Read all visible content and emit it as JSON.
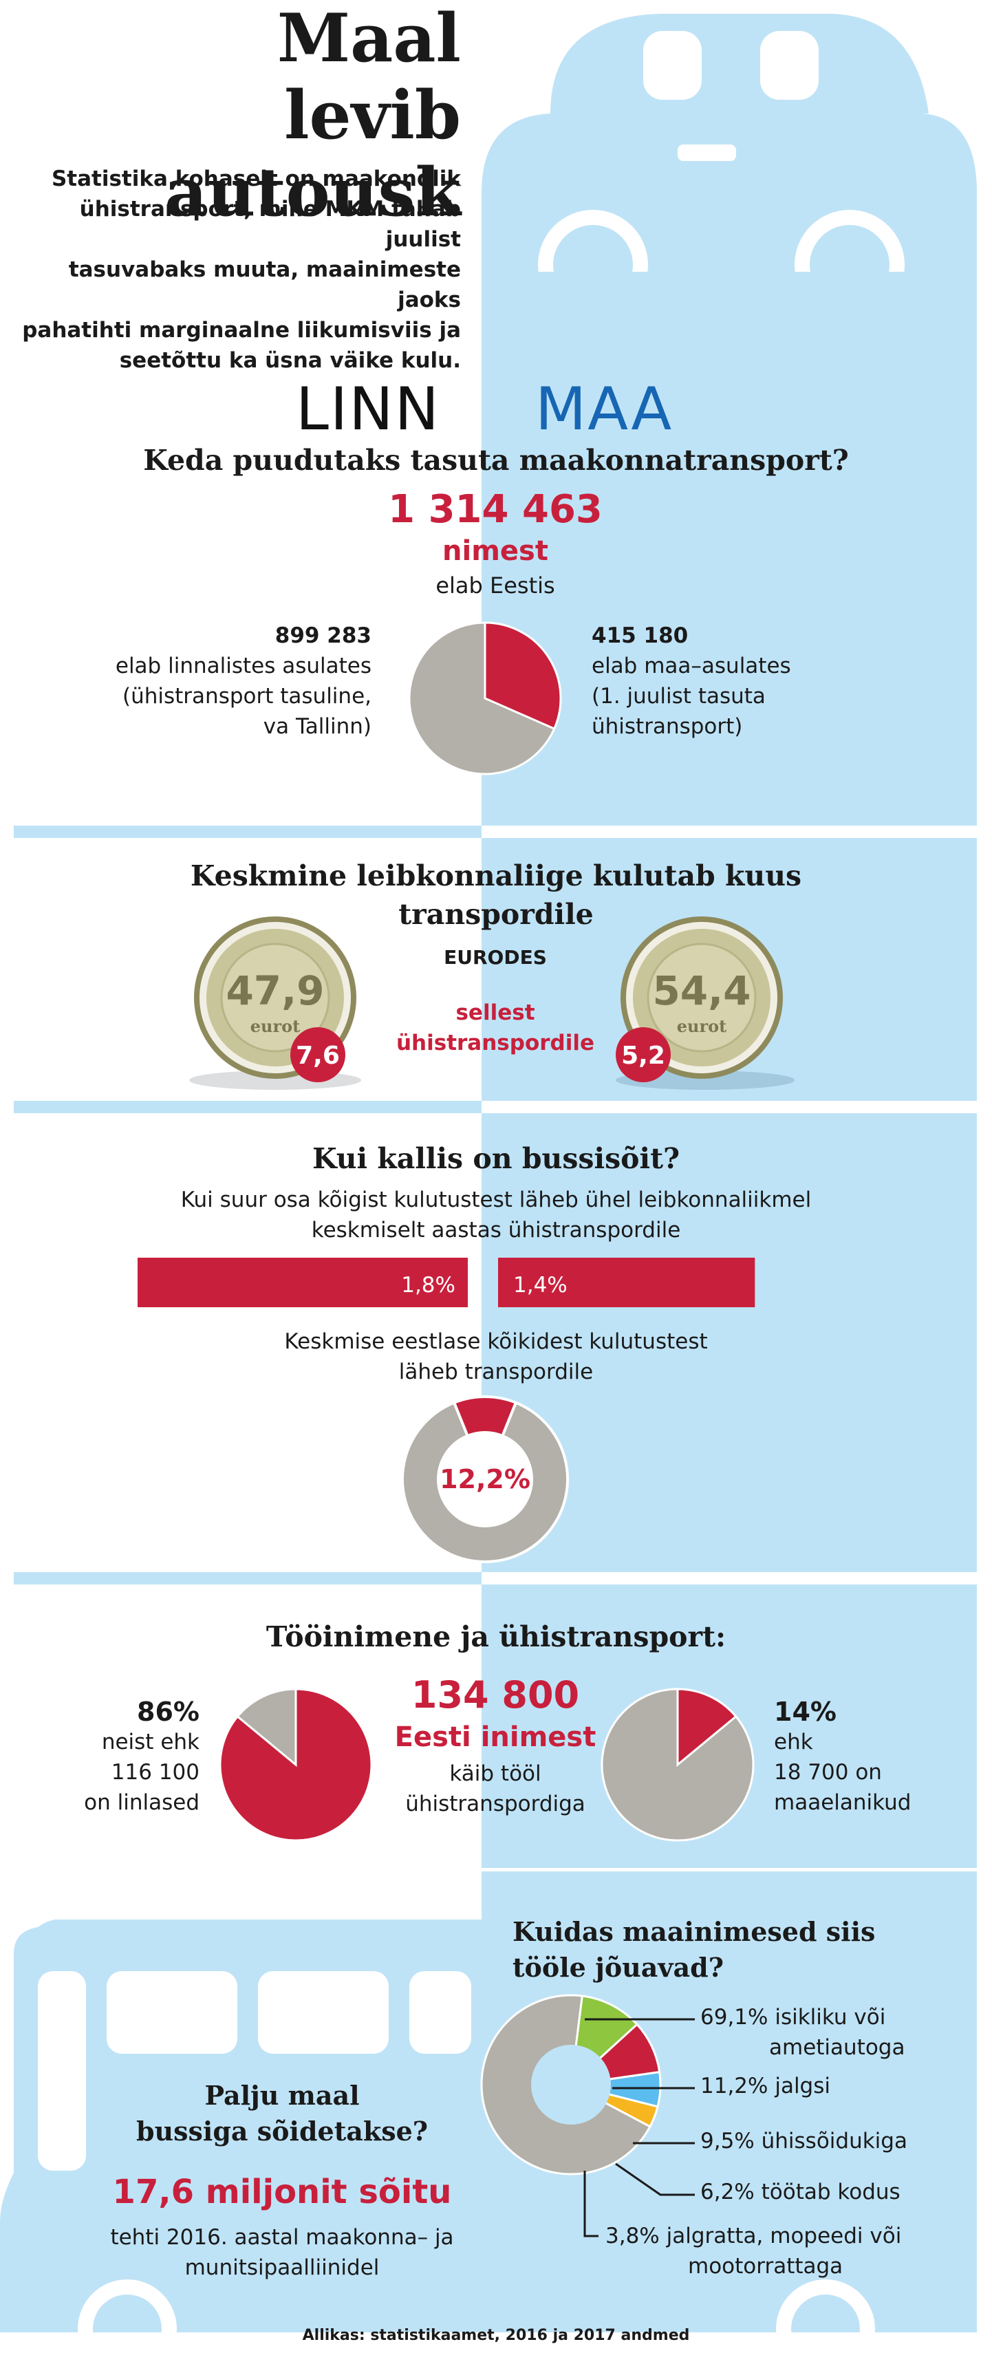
{
  "header": {
    "title_line1": "Maal",
    "title_line2": "levib autousk",
    "intro": [
      "Statistika kohaselt on maakondlik",
      "ühistransport, mille MKM tahab juulist",
      "tasuvabaks muuta, maainimeste jaoks",
      "pahatihti marginaalne liikumisviis ja",
      "seetõttu ka üsna väike kulu."
    ]
  },
  "labels": {
    "city": "LINN",
    "rural": "MAA"
  },
  "section1": {
    "heading": "Keda puudutaks tasuta maakonnatransport?",
    "total_number": "1 314 463",
    "total_unit": "nimest",
    "total_caption": "elab Eestis",
    "left_number": "899 283",
    "left_text": [
      "elab linnalistes asulates",
      "(ühistransport tasuline,",
      "va Tallinn)"
    ],
    "right_number": "415 180",
    "right_text": [
      "elab maa–asulates",
      "(1. juulist tasuta",
      "ühistransport)"
    ],
    "pie": {
      "city": 899283,
      "rural": 415180
    }
  },
  "section2": {
    "heading_line1": "Keskmine leibkonnaliige kulutab kuus",
    "heading_line2": "transpordile",
    "unit": "EURODES",
    "note_line1": "sellest",
    "note_line2": "ühistranspordile",
    "coin_city": {
      "value": "47,9",
      "unit": "eurot",
      "badge": "7,6"
    },
    "coin_rural": {
      "value": "54,4",
      "unit": "eurot",
      "badge": "5,2"
    }
  },
  "section3": {
    "heading": "Kui kallis on bussisõit?",
    "subheading": [
      "Kui suur osa kõigist kulutustest läheb ühel leibkonnaliikmel",
      "keskmiselt aastas ühistranspordile"
    ],
    "bar_city": {
      "label": "1,8%",
      "value": 1.8
    },
    "bar_rural": {
      "label": "1,4%",
      "value": 1.4
    },
    "donut_caption": [
      "Keskmise eestlase kõikidest kulutustest",
      "läheb transpordile"
    ],
    "donut_label": "12,2%",
    "donut_value": 12.2
  },
  "section4": {
    "heading": "Tööinimene ja ühistransport:",
    "center_number": "134 800",
    "center_unit": "Eesti inimest",
    "center_text": [
      "käib tööl",
      "ühistranspordiga"
    ],
    "left_percent": "86%",
    "left_text": [
      "neist ehk",
      "116 100",
      "on linlased"
    ],
    "left_value": 86,
    "right_percent": "14%",
    "right_text": [
      "ehk",
      "18 700 on",
      "maaelanikud"
    ],
    "right_value": 14
  },
  "section5": {
    "heading": [
      "Kuidas maainimesed siis",
      "tööle jõuavad?"
    ],
    "items": [
      {
        "text": [
          "69,1% isikliku või",
          "ametiautoga"
        ],
        "value": 69.1,
        "color": "#b2b0a8"
      },
      {
        "text": [
          "11,2% jalgsi"
        ],
        "value": 11.2,
        "color": "#8ec63f"
      },
      {
        "text": [
          "9,5% ühissõidukiga"
        ],
        "value": 9.5,
        "color": "#c8203c"
      },
      {
        "text": [
          "6,2% töötab kodus"
        ],
        "value": 6.2,
        "color": "#5bbcef"
      },
      {
        "text": [
          "3,8% jalgratta, mopeedi või",
          "mootorrattaga"
        ],
        "value": 3.8,
        "color": "#f7b51f"
      }
    ]
  },
  "section6": {
    "heading": [
      "Palju maal",
      "bussiga sõidetakse?"
    ],
    "big": "17,6 miljonit sõitu",
    "text": [
      "tehti 2016. aastal maakonna– ja",
      "munitsipaalliinidel"
    ]
  },
  "source": "Allikas: statistikaamet, 2016 ja 2017 andmed",
  "colors": {
    "red": "#c8203c",
    "blue": "#1666b4",
    "lightblue": "#bfe3f6",
    "grey": "#b2b0a8"
  }
}
